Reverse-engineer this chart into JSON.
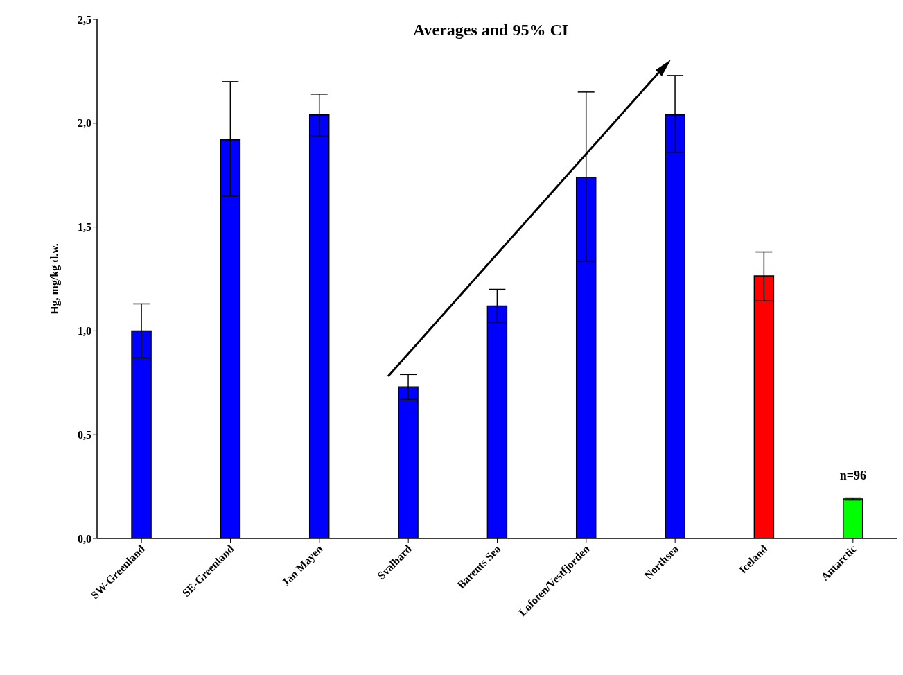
{
  "chart_data": {
    "type": "bar",
    "title": "Averages and 95% CI",
    "ylabel": "Hg, mg/kg d.w.",
    "categories": [
      "SW-Greenland",
      "SE-Greenland",
      "Jan Mayen",
      "Svalbard",
      "Barents Sea",
      "Lofoten/Vestfjorden",
      "Northsea",
      "Iceland",
      "Antarctic"
    ],
    "values": [
      1.0,
      1.92,
      2.04,
      0.73,
      1.12,
      1.74,
      2.04,
      1.265,
      0.19
    ],
    "colors": [
      "#0000ff",
      "#0000ff",
      "#0000ff",
      "#0000ff",
      "#0000ff",
      "#0000ff",
      "#0000ff",
      "#ff0000",
      "#00ff00"
    ],
    "errors": [
      [
        0.87,
        1.13
      ],
      [
        1.65,
        2.2
      ],
      [
        1.94,
        2.14
      ],
      [
        0.67,
        0.79
      ],
      [
        1.04,
        1.2
      ],
      [
        1.335,
        2.15
      ],
      [
        1.86,
        2.23
      ],
      [
        1.145,
        1.38
      ],
      [
        0.185,
        0.195
      ]
    ],
    "ylim": [
      0,
      2.5
    ],
    "yticks": [
      {
        "value": 0,
        "label": "0,0"
      },
      {
        "value": 0.5,
        "label": "0,5"
      },
      {
        "value": 1,
        "label": "1,0"
      },
      {
        "value": 1.5,
        "label": "1,5"
      },
      {
        "value": 2,
        "label": "2,0"
      },
      {
        "value": 2.5,
        "label": "2,5"
      }
    ],
    "grid": false,
    "legend": false,
    "annotations": [
      {
        "text": "n=96",
        "x": "Antarctic",
        "y": 0.19
      }
    ]
  }
}
